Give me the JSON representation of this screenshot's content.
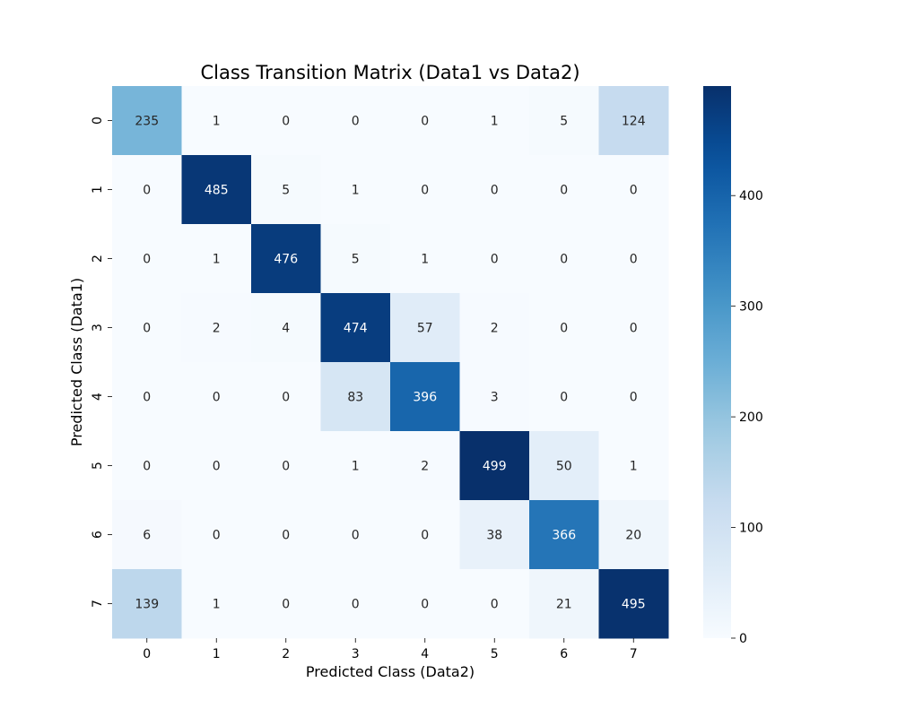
{
  "chart_data": {
    "type": "heatmap",
    "title": "Class Transition Matrix (Data1 vs Data2)",
    "xlabel": "Predicted Class (Data2)",
    "ylabel": "Predicted Class (Data1)",
    "x_categories": [
      "0",
      "1",
      "2",
      "3",
      "4",
      "5",
      "6",
      "7"
    ],
    "y_categories": [
      "0",
      "1",
      "2",
      "3",
      "4",
      "5",
      "6",
      "7"
    ],
    "values": [
      [
        235,
        1,
        0,
        0,
        0,
        1,
        5,
        124
      ],
      [
        0,
        485,
        5,
        1,
        0,
        0,
        0,
        0
      ],
      [
        0,
        1,
        476,
        5,
        1,
        0,
        0,
        0
      ],
      [
        0,
        2,
        4,
        474,
        57,
        2,
        0,
        0
      ],
      [
        0,
        0,
        0,
        83,
        396,
        3,
        0,
        0
      ],
      [
        0,
        0,
        0,
        1,
        2,
        499,
        50,
        1
      ],
      [
        6,
        0,
        0,
        0,
        0,
        38,
        366,
        20
      ],
      [
        139,
        1,
        0,
        0,
        0,
        0,
        21,
        495
      ]
    ],
    "colormap": "Blues",
    "vmin": 0,
    "vmax": 499,
    "colorbar_ticks": [
      0,
      100,
      200,
      300,
      400
    ],
    "colorbar_tick_labels": [
      "0",
      "100",
      "200",
      "300",
      "400"
    ],
    "annotate": true,
    "grid": false
  }
}
